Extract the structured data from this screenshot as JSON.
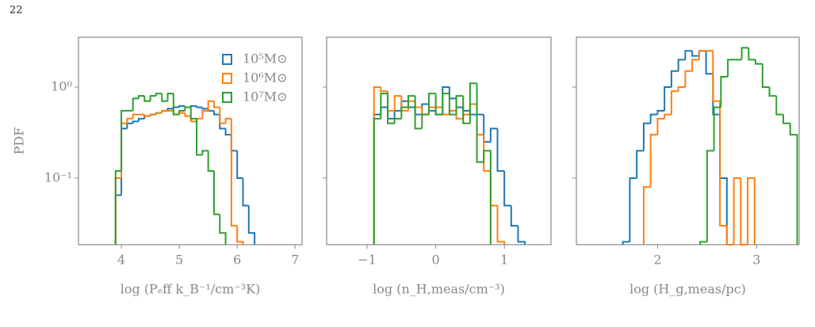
{
  "page_number": "22",
  "chart_data": [
    {
      "type": "histogram",
      "log_y": true,
      "ylabel": "PDF",
      "xlabel": "log (Pₑff k_B⁻¹/cm⁻³K)",
      "xlim": [
        3.26,
        7.12
      ],
      "xticks": [
        4,
        5,
        6,
        7
      ],
      "ylim": [
        0.0186,
        3.53
      ],
      "yticks": [
        {
          "value": 0.1,
          "label": "10⁻¹"
        },
        {
          "value": 1,
          "label": "10⁰"
        }
      ],
      "legend": "upper right",
      "series": [
        {
          "name": "10⁵M⊙",
          "color": "#1f77b4",
          "bins": [
            3.9,
            4.0,
            4.1,
            4.2,
            4.3,
            4.4,
            4.5,
            4.6,
            4.7,
            4.8,
            4.9,
            5.0,
            5.1,
            5.2,
            5.3,
            5.4,
            5.5,
            5.6,
            5.7,
            5.8,
            5.9,
            6.0,
            6.1,
            6.2,
            6.3
          ],
          "values": [
            0.065,
            0.35,
            0.4,
            0.42,
            0.45,
            0.48,
            0.5,
            0.52,
            0.55,
            0.58,
            0.6,
            0.62,
            0.6,
            0.62,
            0.6,
            0.58,
            0.55,
            0.5,
            0.35,
            0.3,
            0.2,
            0.1,
            0.05,
            0.025
          ]
        },
        {
          "name": "10⁶M⊙",
          "color": "#ff7f0e",
          "bins": [
            3.9,
            4.0,
            4.1,
            4.2,
            4.3,
            4.4,
            4.5,
            4.6,
            4.7,
            4.8,
            4.9,
            5.0,
            5.1,
            5.2,
            5.3,
            5.4,
            5.5,
            5.6,
            5.7,
            5.8,
            5.9,
            6.0,
            6.1
          ],
          "values": [
            0.1,
            0.4,
            0.45,
            0.5,
            0.5,
            0.48,
            0.5,
            0.52,
            0.55,
            0.55,
            0.5,
            0.52,
            0.48,
            0.42,
            0.45,
            0.55,
            0.7,
            0.6,
            0.4,
            0.45,
            0.03,
            0.02
          ]
        },
        {
          "name": "10⁷M⊙",
          "color": "#2ca02c",
          "bins": [
            3.9,
            4.0,
            4.1,
            4.2,
            4.3,
            4.4,
            4.5,
            4.6,
            4.7,
            4.8,
            4.9,
            5.0,
            5.1,
            5.2,
            5.3,
            5.4,
            5.5,
            5.6,
            5.7,
            5.8
          ],
          "values": [
            0.12,
            0.55,
            0.55,
            0.75,
            0.8,
            0.7,
            0.8,
            0.85,
            0.7,
            0.85,
            0.5,
            0.55,
            0.6,
            0.45,
            0.18,
            0.2,
            0.12,
            0.04,
            0.025
          ]
        }
      ]
    },
    {
      "type": "histogram",
      "log_y": true,
      "ytick_labels": false,
      "xlabel": "log (n_H,meas/cm⁻³)",
      "xlim": [
        -1.59,
        1.68
      ],
      "xticks": [
        {
          "value": -1,
          "label": "−1"
        },
        0,
        1
      ],
      "ylim": [
        0.0186,
        3.53
      ],
      "yticks": [
        0.1,
        1
      ],
      "series": [
        {
          "color": "#1f77b4",
          "bins": [
            -0.9,
            -0.8,
            -0.7,
            -0.6,
            -0.5,
            -0.4,
            -0.3,
            -0.2,
            -0.1,
            0.0,
            0.1,
            0.2,
            0.3,
            0.4,
            0.5,
            0.6,
            0.7,
            0.8,
            0.9,
            1.0,
            1.1,
            1.2,
            1.3
          ],
          "values": [
            0.5,
            0.6,
            0.45,
            0.55,
            0.7,
            0.6,
            0.5,
            0.65,
            0.55,
            0.5,
            1.0,
            0.75,
            0.6,
            0.55,
            0.5,
            0.5,
            0.25,
            0.35,
            0.12,
            0.05,
            0.03,
            0.02
          ]
        },
        {
          "color": "#ff7f0e",
          "bins": [
            -0.9,
            -0.8,
            -0.7,
            -0.6,
            -0.5,
            -0.4,
            -0.3,
            -0.2,
            -0.1,
            0.0,
            0.1,
            0.2,
            0.3,
            0.4,
            0.5,
            0.6,
            0.7,
            0.8,
            0.9,
            1.0
          ],
          "values": [
            1.0,
            0.9,
            0.55,
            0.8,
            0.55,
            0.7,
            0.6,
            0.5,
            0.6,
            0.6,
            0.5,
            0.55,
            0.45,
            0.5,
            0.65,
            0.3,
            0.12,
            0.05,
            0.02
          ]
        },
        {
          "color": "#2ca02c",
          "bins": [
            -0.9,
            -0.8,
            -0.7,
            -0.6,
            -0.5,
            -0.4,
            -0.3,
            -0.2,
            -0.1,
            0.0,
            0.1,
            0.2,
            0.3,
            0.4,
            0.5,
            0.6,
            0.7,
            0.8
          ],
          "values": [
            0.45,
            0.85,
            0.4,
            0.45,
            0.6,
            0.8,
            0.35,
            0.5,
            0.85,
            0.5,
            0.85,
            0.5,
            0.8,
            0.4,
            1.1,
            0.15,
            0.2
          ]
        }
      ]
    },
    {
      "type": "histogram",
      "log_y": true,
      "ytick_labels": false,
      "xlabel": "log (H_g,meas/pc)",
      "xlim": [
        1.18,
        3.43
      ],
      "xticks": [
        2,
        3
      ],
      "ylim": [
        0.0186,
        3.53
      ],
      "yticks": [
        0.1,
        1
      ],
      "series": [
        {
          "color": "#1f77b4",
          "bins": [
            1.65,
            1.72,
            1.79,
            1.86,
            1.93,
            2.0,
            2.07,
            2.14,
            2.21,
            2.28,
            2.35,
            2.42,
            2.49,
            2.56,
            2.63,
            2.7
          ],
          "values": [
            0.02,
            0.1,
            0.2,
            0.4,
            0.5,
            0.55,
            1.0,
            1.5,
            2.0,
            2.5,
            2.2,
            2.5,
            1.4,
            0.5,
            0.1
          ]
        },
        {
          "color": "#ff7f0e",
          "bins": [
            1.86,
            1.93,
            2.0,
            2.07,
            2.14,
            2.21,
            2.28,
            2.35,
            2.42,
            2.49,
            2.56,
            2.63,
            2.7,
            2.77,
            2.84,
            2.91,
            2.98
          ],
          "values": [
            0.08,
            0.3,
            0.45,
            0.5,
            0.9,
            1.0,
            1.5,
            2.0,
            2.5,
            2.5,
            0.7,
            0.03,
            0,
            0.1,
            0,
            0.1
          ]
        },
        {
          "color": "#2ca02c",
          "bins": [
            2.43,
            2.5,
            2.57,
            2.64,
            2.71,
            2.78,
            2.85,
            2.92,
            2.99,
            3.06,
            3.13,
            3.2,
            3.27,
            3.34,
            3.41
          ],
          "values": [
            0.02,
            0.2,
            0.6,
            1.3,
            2.0,
            2.0,
            2.7,
            2.0,
            1.8,
            1.0,
            0.8,
            0.5,
            0.4,
            0.3
          ]
        }
      ]
    }
  ]
}
